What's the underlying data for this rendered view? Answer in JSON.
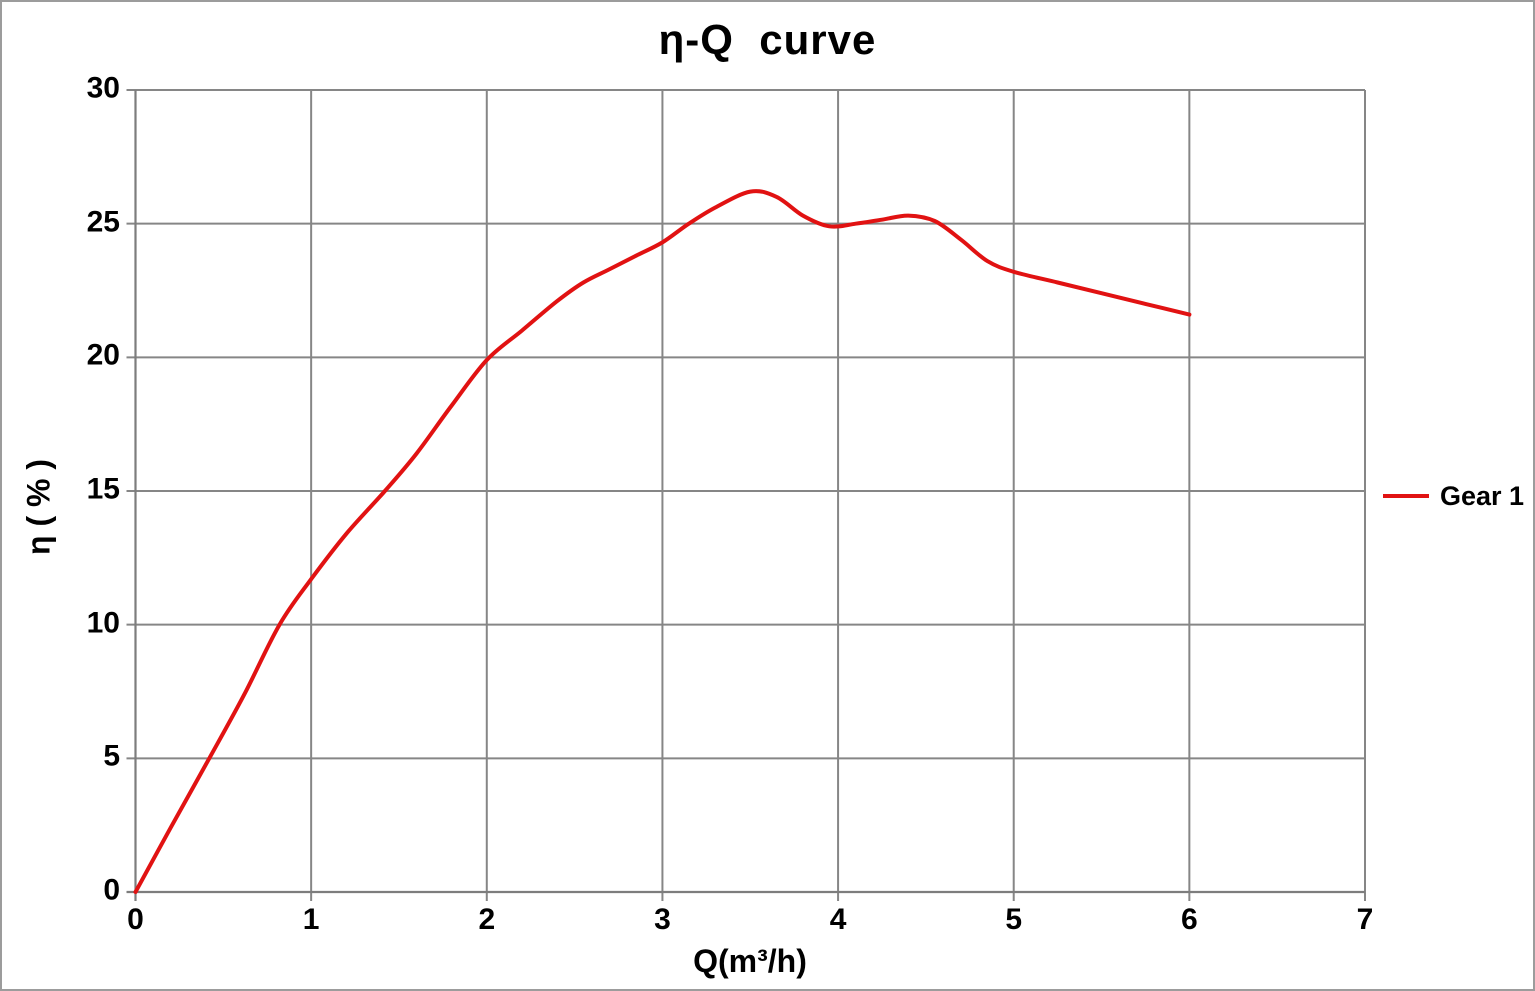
{
  "title": "η-Q  curve",
  "legend": {
    "label": "Gear 1",
    "color": "#e11212"
  },
  "axes": {
    "x": {
      "label": "Q(m³/h)",
      "tick_labels": [
        "0",
        "1",
        "2",
        "3",
        "4",
        "5",
        "6",
        "7"
      ]
    },
    "y": {
      "label": "η ( % )",
      "tick_labels": [
        "0",
        "5",
        "10",
        "15",
        "20",
        "25",
        "30"
      ]
    }
  },
  "colors": {
    "curve": "#e11212",
    "grid": "#868686",
    "axis": "#7d7d7d",
    "text": "#000000",
    "page_border": "#9c9c9c"
  },
  "chart_data": {
    "type": "line",
    "title": "η-Q curve",
    "xlabel": "Q(m³/h)",
    "ylabel": "η ( % )",
    "xlim": [
      0,
      7
    ],
    "ylim": [
      0,
      30
    ],
    "xticks": [
      0,
      1,
      2,
      3,
      4,
      5,
      6,
      7
    ],
    "yticks": [
      0,
      5,
      10,
      15,
      20,
      25,
      30
    ],
    "grid": true,
    "legend_position": "right-center",
    "series": [
      {
        "name": "Gear 1",
        "color": "#e11212",
        "points": [
          [
            0.0,
            0.0
          ],
          [
            0.2,
            2.4
          ],
          [
            0.42,
            5.0
          ],
          [
            0.62,
            7.4
          ],
          [
            0.82,
            10.0
          ],
          [
            1.0,
            11.7
          ],
          [
            1.2,
            13.4
          ],
          [
            1.42,
            15.0
          ],
          [
            1.6,
            16.4
          ],
          [
            1.8,
            18.2
          ],
          [
            2.0,
            19.9
          ],
          [
            2.2,
            21.0
          ],
          [
            2.4,
            22.1
          ],
          [
            2.55,
            22.8
          ],
          [
            2.7,
            23.3
          ],
          [
            2.85,
            23.8
          ],
          [
            3.0,
            24.3
          ],
          [
            3.15,
            25.0
          ],
          [
            3.3,
            25.6
          ],
          [
            3.5,
            26.2
          ],
          [
            3.65,
            26.0
          ],
          [
            3.8,
            25.3
          ],
          [
            3.95,
            24.9
          ],
          [
            4.1,
            25.0
          ],
          [
            4.25,
            25.15
          ],
          [
            4.4,
            25.3
          ],
          [
            4.55,
            25.1
          ],
          [
            4.7,
            24.4
          ],
          [
            4.85,
            23.6
          ],
          [
            5.0,
            23.2
          ],
          [
            5.25,
            22.8
          ],
          [
            5.5,
            22.4
          ],
          [
            5.75,
            22.0
          ],
          [
            6.0,
            21.6
          ]
        ]
      }
    ]
  }
}
